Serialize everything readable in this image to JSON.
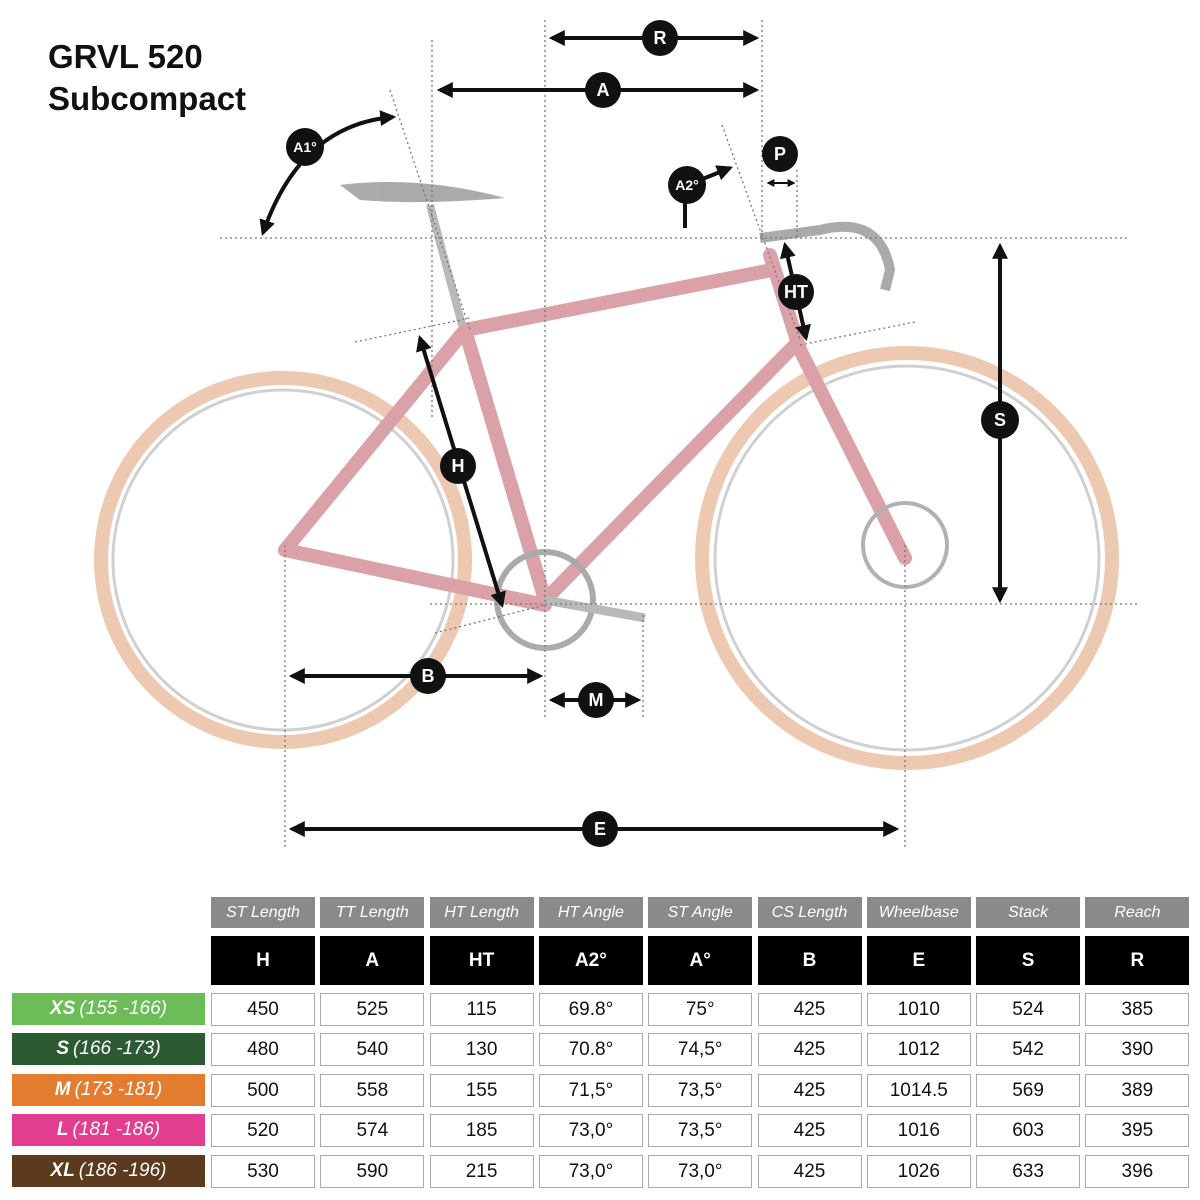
{
  "header": {
    "title": "GRVL 520",
    "subtitle": "Subcompact"
  },
  "diagram": {
    "labels": {
      "R": "R",
      "A": "A",
      "A1": "A1°",
      "A2": "A2°",
      "P": "P",
      "HT": "HT",
      "S": "S",
      "H": "H",
      "B": "B",
      "M": "M",
      "E": "E"
    }
  },
  "table": {
    "columns": [
      {
        "name": "ST Length",
        "code": "H"
      },
      {
        "name": "TT Length",
        "code": "A"
      },
      {
        "name": "HT Length",
        "code": "HT"
      },
      {
        "name": "HT Angle",
        "code": "A2°"
      },
      {
        "name": "ST Angle",
        "code": "A°"
      },
      {
        "name": "CS Length",
        "code": "B"
      },
      {
        "name": "Wheelbase",
        "code": "E"
      },
      {
        "name": "Stack",
        "code": "S"
      },
      {
        "name": "Reach",
        "code": "R"
      }
    ],
    "rows": [
      {
        "size": "XS",
        "range": "(155 -166)",
        "color": "#6cbd58",
        "cells": [
          "450",
          "525",
          "115",
          "69.8°",
          "75°",
          "425",
          "1010",
          "524",
          "385"
        ]
      },
      {
        "size": "S",
        "range": "(166 -173)",
        "color": "#2c5b33",
        "cells": [
          "480",
          "540",
          "130",
          "70.8°",
          "74,5°",
          "425",
          "1012",
          "542",
          "390"
        ]
      },
      {
        "size": "M",
        "range": "(173 -181)",
        "color": "#e47c30",
        "cells": [
          "500",
          "558",
          "155",
          "71,5°",
          "73,5°",
          "425",
          "1014.5",
          "569",
          "389"
        ]
      },
      {
        "size": "L",
        "range": "(181 -186)",
        "color": "#e23d8e",
        "cells": [
          "520",
          "574",
          "185",
          "73,0°",
          "73,5°",
          "425",
          "1016",
          "603",
          "395"
        ]
      },
      {
        "size": "XL",
        "range": "(186 -196)",
        "color": "#5b3a1d",
        "cells": [
          "530",
          "590",
          "215",
          "73,0°",
          "73,0°",
          "425",
          "1026",
          "633",
          "396"
        ]
      }
    ]
  }
}
